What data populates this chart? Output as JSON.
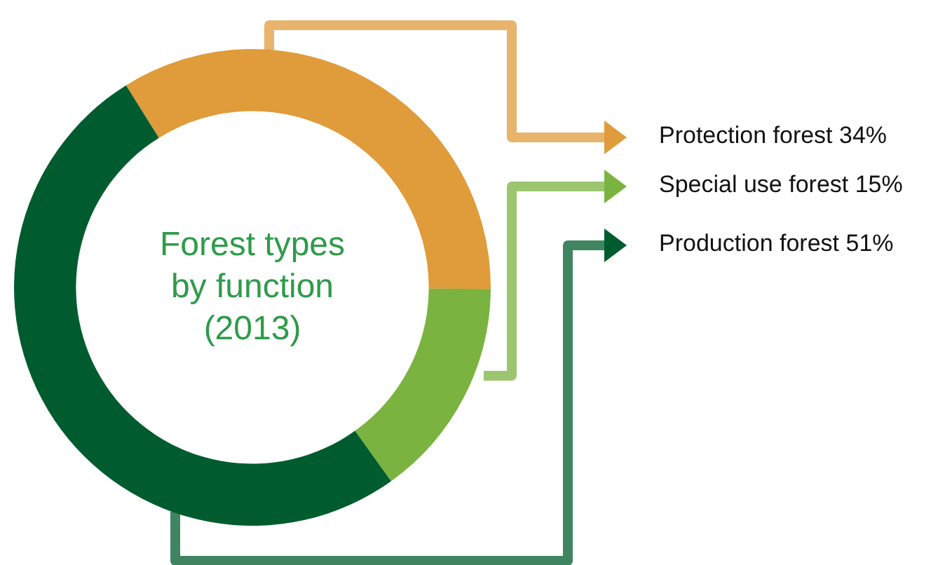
{
  "chart_data": {
    "type": "donut",
    "title": "Forest types by function (2013)",
    "categories": [
      "Protection forest",
      "Special use forest",
      "Production forest"
    ],
    "values": [
      34,
      15,
      51
    ],
    "value_labels": [
      "34%",
      "15%",
      "51%"
    ],
    "colors": [
      "#e09b3a",
      "#7ab33f",
      "#005c2e"
    ],
    "legend": "right"
  }
}
